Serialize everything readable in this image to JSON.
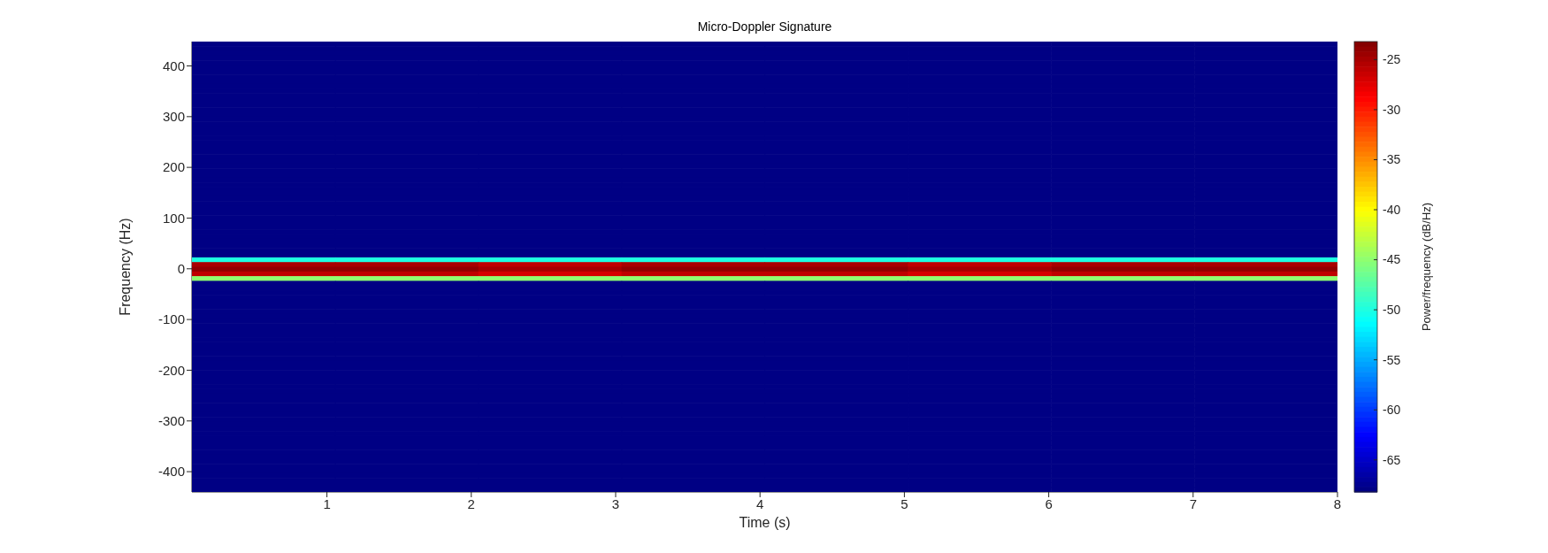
{
  "chart_data": {
    "type": "heatmap",
    "title": "Micro-Doppler Signature",
    "xlabel": "Time (s)",
    "ylabel": "Frequency (Hz)",
    "clabel": "Power/frequency (dB/Hz)",
    "xlim": [
      0.065,
      8
    ],
    "ylim": [
      -440,
      448
    ],
    "xticks": [
      1,
      2,
      3,
      4,
      5,
      6,
      7,
      8
    ],
    "yticks": [
      -400,
      -300,
      -200,
      -100,
      0,
      100,
      200,
      300,
      400
    ],
    "clim": [
      -68.2,
      -23.2
    ],
    "cticks": [
      -65,
      -60,
      -55,
      -50,
      -45,
      -40,
      -35,
      -30,
      -25
    ],
    "cells": [
      [
        -68,
        -68,
        -68,
        -68,
        -68,
        -68,
        -68,
        -68
      ],
      [
        -68,
        -68,
        -68,
        -68,
        -68,
        -68,
        -68,
        -68
      ],
      [
        -68,
        -68,
        -68,
        -68,
        -68,
        -68,
        -68,
        -68
      ],
      [
        -68,
        -68,
        -68,
        -68,
        -68,
        -68,
        -68,
        -68
      ],
      [
        -68,
        -68,
        -68,
        -68,
        -68,
        -68,
        -68,
        -68
      ],
      [
        -68,
        -68,
        -68,
        -68,
        -68,
        -68,
        -68,
        -68
      ],
      [
        -68,
        -68,
        -68,
        -68,
        -68,
        -68,
        -68,
        -68
      ],
      [
        -68,
        -68,
        -68,
        -68,
        -68,
        -68,
        -68,
        -68
      ],
      [
        -68,
        -68,
        -68,
        -68,
        -68,
        -68,
        -68,
        -68
      ],
      [
        -68,
        -68,
        -68,
        -68,
        -68,
        -68,
        -68,
        -68
      ],
      [
        -68,
        -68,
        -68,
        -68,
        -68,
        -68,
        -68,
        -68
      ],
      [
        -68,
        -68,
        -68,
        -68,
        -68,
        -68,
        -68,
        -68
      ],
      [
        -68,
        -68,
        -68,
        -68,
        -68,
        -68,
        -68,
        -68
      ],
      [
        -68,
        -68,
        -68,
        -68,
        -68,
        -68,
        -68,
        -68
      ],
      [
        -68,
        -68,
        -68,
        -68,
        -68,
        -68,
        -68,
        -68
      ],
      [
        -68,
        -68,
        -68,
        -68,
        -68,
        -68,
        -68,
        -68
      ],
      [
        -68,
        -68,
        -68,
        -68,
        -68,
        -68,
        -68,
        -68
      ],
      [
        -68,
        -68,
        -68,
        -68,
        -68,
        -68,
        -68,
        -68
      ],
      [
        -68,
        -68,
        -68,
        -68,
        -68,
        -68,
        -68,
        -68
      ],
      [
        -68,
        -68,
        -68,
        -68,
        -68,
        -68,
        -68,
        -68
      ],
      [
        -68,
        -68,
        -68,
        -68,
        -68,
        -68,
        -68,
        -68
      ],
      [
        -68,
        -68,
        -68,
        -68,
        -68,
        -68,
        -68,
        -68
      ],
      [
        -68,
        -68,
        -68,
        -68,
        -68,
        -68,
        -68,
        -68
      ],
      [
        -68,
        -68,
        -68,
        -68,
        -68,
        -68,
        -68,
        -68
      ],
      [
        -68,
        -68,
        -68,
        -68,
        -68,
        -68,
        -68,
        -68
      ],
      [
        -68,
        -68,
        -68,
        -68,
        -68,
        -68,
        -68,
        -68
      ],
      [
        -68,
        -68,
        -68,
        -68,
        -68,
        -68,
        -68,
        -68
      ],
      [
        -68,
        -68,
        -68,
        -68,
        -68,
        -68,
        -68,
        -68
      ],
      [
        -68,
        -68,
        -68,
        -68,
        -68,
        -68,
        -68,
        -68
      ],
      [
        -68,
        -68,
        -68,
        -68,
        -68,
        -68,
        -68,
        -68
      ],
      [
        -68,
        -68,
        -68,
        -68,
        -68,
        -68,
        -68,
        -68
      ],
      [
        -68,
        -68,
        -68,
        -68,
        -68,
        -68,
        -68,
        -68
      ],
      [
        -68,
        -68,
        -68,
        -68,
        -68,
        -68,
        -68,
        -68
      ],
      [
        -68,
        -68,
        -68,
        -68,
        -68,
        -68,
        -68,
        -68
      ],
      [
        -68,
        -68,
        -68,
        -68,
        -68,
        -68,
        -68,
        -68
      ],
      [
        -68,
        -68,
        -68,
        -68,
        -68,
        -68,
        -68,
        -68
      ],
      [
        -68,
        -68,
        -68,
        -68,
        -68,
        -68,
        -68,
        -68
      ],
      [
        -68,
        -68,
        -68,
        -68,
        -68,
        -68,
        -68,
        -68
      ],
      [
        -68,
        -68,
        -68,
        -68,
        -68,
        -68,
        -68,
        -68
      ],
      [
        -68,
        -68,
        -68,
        -68,
        -68,
        -68,
        -68,
        -68
      ],
      [
        -68,
        -68,
        -68,
        -68,
        -68,
        -68,
        -68,
        -68
      ],
      [
        -68,
        -68,
        -68,
        -68,
        -68,
        -68,
        -68,
        -68
      ],
      [
        -68,
        -68,
        -68,
        -68,
        -68,
        -68,
        -68,
        -68
      ],
      [
        -68,
        -68,
        -68,
        -68,
        -68,
        -68,
        -68,
        -68
      ],
      [
        -68,
        -68,
        -68,
        -68,
        -68,
        -68,
        -68,
        -68
      ],
      [
        -68,
        -68,
        -68,
        -68,
        -68,
        -68,
        -68,
        -68
      ],
      [
        -50,
        -50,
        -50,
        -50,
        -50,
        -50,
        -50,
        -50
      ],
      [
        -25,
        -25,
        -26,
        -25,
        -25,
        -26,
        -25,
        -25
      ],
      [
        -24,
        -24,
        -25,
        -24,
        -24,
        -25,
        -24,
        -24
      ],
      [
        -26,
        -26,
        -27,
        -26,
        -26,
        -27,
        -26,
        -26
      ],
      [
        -45,
        -45,
        -45,
        -45,
        -45,
        -45,
        -45,
        -45
      ],
      [
        -68,
        -68,
        -68,
        -68,
        -68,
        -68,
        -68,
        -68
      ],
      [
        -68,
        -68,
        -68,
        -68,
        -68,
        -68,
        -68,
        -68
      ],
      [
        -68,
        -68,
        -68,
        -68,
        -68,
        -68,
        -68,
        -68
      ],
      [
        -68,
        -68,
        -68,
        -68,
        -68,
        -68,
        -68,
        -68
      ],
      [
        -68,
        -68,
        -68,
        -68,
        -68,
        -68,
        -68,
        -68
      ],
      [
        -68,
        -68,
        -68,
        -68,
        -68,
        -68,
        -68,
        -68
      ],
      [
        -68,
        -68,
        -68,
        -68,
        -68,
        -68,
        -68,
        -68
      ],
      [
        -68,
        -68,
        -68,
        -68,
        -68,
        -68,
        -68,
        -68
      ],
      [
        -68,
        -68,
        -68,
        -68,
        -68,
        -68,
        -68,
        -68
      ],
      [
        -68,
        -68,
        -68,
        -68,
        -68,
        -68,
        -68,
        -68
      ],
      [
        -68,
        -68,
        -68,
        -68,
        -68,
        -68,
        -68,
        -68
      ],
      [
        -68,
        -68,
        -68,
        -68,
        -68,
        -68,
        -68,
        -68
      ],
      [
        -68,
        -68,
        -68,
        -68,
        -68,
        -68,
        -68,
        -68
      ],
      [
        -68,
        -68,
        -68,
        -68,
        -68,
        -68,
        -68,
        -68
      ],
      [
        -68,
        -68,
        -68,
        -68,
        -68,
        -68,
        -68,
        -68
      ],
      [
        -68,
        -68,
        -68,
        -68,
        -68,
        -68,
        -68,
        -68
      ],
      [
        -68,
        -68,
        -68,
        -68,
        -68,
        -68,
        -68,
        -68
      ],
      [
        -68,
        -68,
        -68,
        -68,
        -68,
        -68,
        -68,
        -68
      ],
      [
        -68,
        -68,
        -68,
        -68,
        -68,
        -68,
        -68,
        -68
      ],
      [
        -68,
        -68,
        -68,
        -68,
        -68,
        -68,
        -68,
        -68
      ],
      [
        -68,
        -68,
        -68,
        -68,
        -68,
        -68,
        -68,
        -68
      ],
      [
        -68,
        -68,
        -68,
        -68,
        -68,
        -68,
        -68,
        -68
      ],
      [
        -68,
        -68,
        -68,
        -68,
        -68,
        -68,
        -68,
        -68
      ],
      [
        -68,
        -68,
        -68,
        -68,
        -68,
        -68,
        -68,
        -68
      ],
      [
        -68,
        -68,
        -68,
        -68,
        -68,
        -68,
        -68,
        -68
      ],
      [
        -68,
        -68,
        -68,
        -68,
        -68,
        -68,
        -68,
        -68
      ],
      [
        -68,
        -68,
        -68,
        -68,
        -68,
        -68,
        -68,
        -68
      ],
      [
        -68,
        -68,
        -68,
        -68,
        -68,
        -68,
        -68,
        -68
      ],
      [
        -68,
        -68,
        -68,
        -68,
        -68,
        -68,
        -68,
        -68
      ],
      [
        -68,
        -68,
        -68,
        -68,
        -68,
        -68,
        -68,
        -68
      ],
      [
        -68,
        -68,
        -68,
        -68,
        -68,
        -68,
        -68,
        -68
      ],
      [
        -68,
        -68,
        -68,
        -68,
        -68,
        -68,
        -68,
        -68
      ],
      [
        -68,
        -68,
        -68,
        -68,
        -68,
        -68,
        -68,
        -68
      ],
      [
        -68,
        -68,
        -68,
        -68,
        -68,
        -68,
        -68,
        -68
      ],
      [
        -68,
        -68,
        -68,
        -68,
        -68,
        -68,
        -68,
        -68
      ],
      [
        -68,
        -68,
        -68,
        -68,
        -68,
        -68,
        -68,
        -68
      ],
      [
        -68,
        -68,
        -68,
        -68,
        -68,
        -68,
        -68,
        -68
      ],
      [
        -68,
        -68,
        -68,
        -68,
        -68,
        -68,
        -68,
        -68
      ],
      [
        -68,
        -68,
        -68,
        -68,
        -68,
        -68,
        -68,
        -68
      ],
      [
        -68,
        -68,
        -68,
        -68,
        -68,
        -68,
        -68,
        -68
      ],
      [
        -68,
        -68,
        -68,
        -68,
        -68,
        -68,
        -68,
        -68
      ],
      [
        -68,
        -68,
        -68,
        -68,
        -68,
        -68,
        -68,
        -68
      ],
      [
        -68,
        -68,
        -68,
        -68,
        -68,
        -68,
        -68,
        -68
      ],
      [
        -68,
        -68,
        -68,
        -68,
        -68,
        -68,
        -68,
        -68
      ],
      [
        -68,
        -68,
        -68,
        -68,
        -68,
        -68,
        -68,
        -68
      ]
    ]
  }
}
